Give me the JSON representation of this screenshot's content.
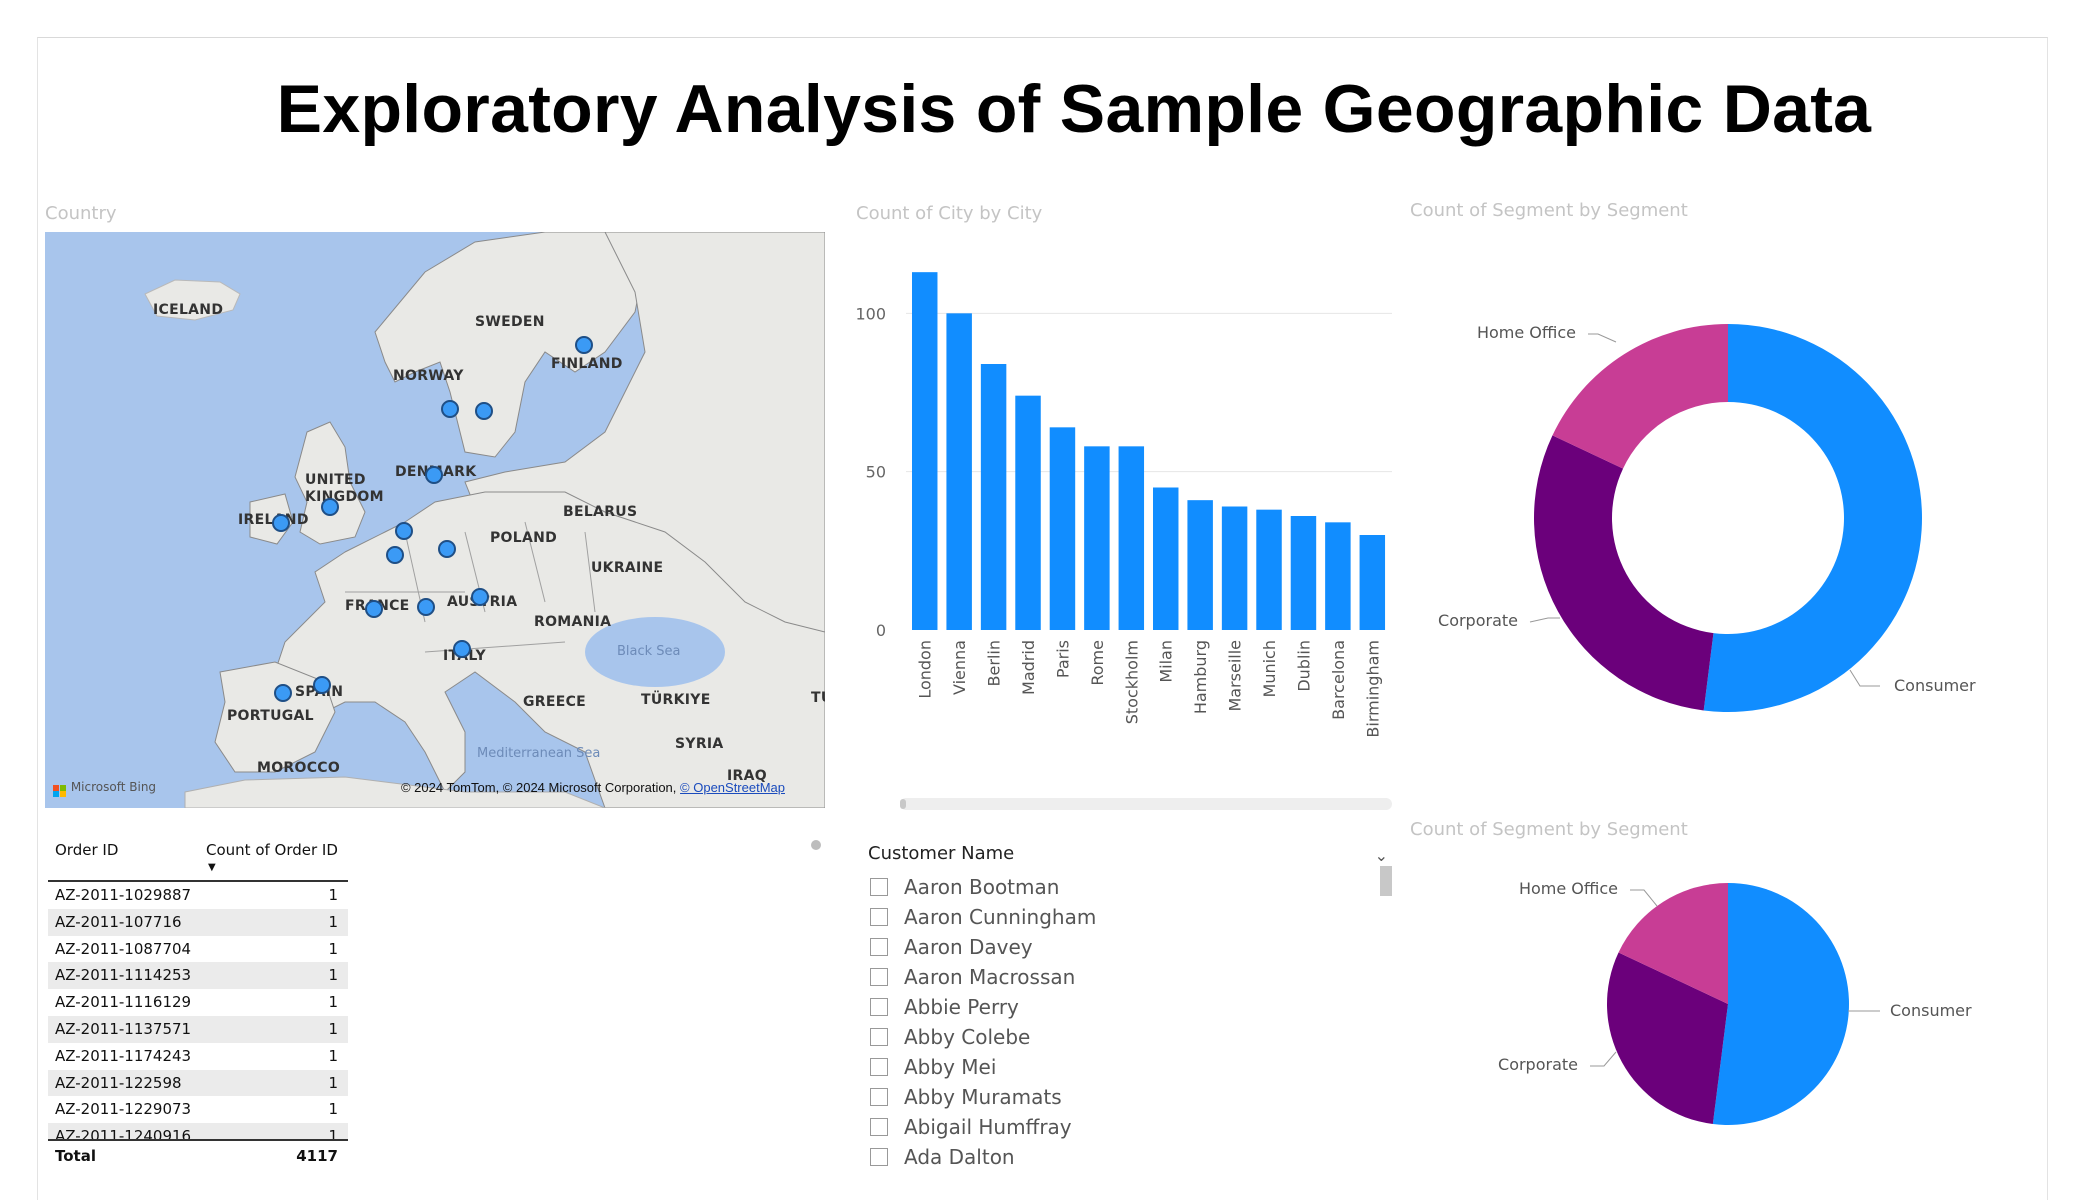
{
  "report": {
    "title": "Exploratory Analysis of Sample Geographic Data"
  },
  "map": {
    "title": "Country",
    "labels": {
      "iceland": "ICELAND",
      "sweden": "SWEDEN",
      "norway": "NORWAY",
      "finland": "FINLAND",
      "denmark": "DENMARK",
      "uk": "UNITED KINGDOM",
      "ireland": "IRELAND",
      "belarus": "BELARUS",
      "poland": "POLAND",
      "ukraine": "UKRAINE",
      "france": "FRANCE",
      "austria": "AUSTRIA",
      "romania": "ROMANIA",
      "italy": "ITALY",
      "spain": "SPAIN",
      "portugal": "PORTUGAL",
      "greece": "GREECE",
      "turkiye": "TÜRKIYE",
      "tu": "TU",
      "syria": "SYRIA",
      "morocco": "MOROCCO",
      "iraq": "IRAQ",
      "black_sea": "Black Sea",
      "med_sea": "Mediterranean Sea"
    },
    "attribution": "© 2024 TomTom, © 2024 Microsoft Corporation,",
    "attribution_link": "© OpenStreetMap",
    "bing": "Microsoft Bing",
    "bing_colors": [
      "#f25022",
      "#7fba00",
      "#00a4ef",
      "#ffb900"
    ],
    "marker_color": "#3b9af5"
  },
  "bar_chart": {
    "title": "Count of City by City",
    "color": "#118dff"
  },
  "donut_chart": {
    "title": "Count of Segment by Segment"
  },
  "pie_chart": {
    "title": "Count of Segment by Segment"
  },
  "table": {
    "col1": "Order ID",
    "col2": "Count of Order ID",
    "rows": [
      {
        "id": "AZ-2011-1029887",
        "count": "1"
      },
      {
        "id": "AZ-2011-107716",
        "count": "1"
      },
      {
        "id": "AZ-2011-1087704",
        "count": "1"
      },
      {
        "id": "AZ-2011-1114253",
        "count": "1"
      },
      {
        "id": "AZ-2011-1116129",
        "count": "1"
      },
      {
        "id": "AZ-2011-1137571",
        "count": "1"
      },
      {
        "id": "AZ-2011-1174243",
        "count": "1"
      },
      {
        "id": "AZ-2011-122598",
        "count": "1"
      },
      {
        "id": "AZ-2011-1229073",
        "count": "1"
      },
      {
        "id": "AZ-2011-1240916",
        "count": "1"
      }
    ],
    "total_label": "Total",
    "total_value": "4117"
  },
  "slicer": {
    "title": "Customer Name",
    "items": [
      "Aaron Bootman",
      "Aaron Cunningham",
      "Aaron Davey",
      "Aaron Macrossan",
      "Abbie Perry",
      "Abby Colebe",
      "Abby Mei",
      "Abby Muramats",
      "Abigail Humffray",
      "Ada Dalton"
    ]
  },
  "chart_data": [
    {
      "type": "bar",
      "title": "Count of City by City",
      "categories": [
        "London",
        "Vienna",
        "Berlin",
        "Madrid",
        "Paris",
        "Rome",
        "Stockholm",
        "Milan",
        "Hamburg",
        "Marseille",
        "Munich",
        "Dublin",
        "Barcelona",
        "Birmingham"
      ],
      "values": [
        113,
        100,
        84,
        74,
        64,
        58,
        58,
        45,
        41,
        39,
        38,
        36,
        34,
        30
      ],
      "yticks": [
        0,
        50,
        100
      ],
      "ylim": [
        0,
        120
      ],
      "grid": true,
      "color": "#118dff"
    },
    {
      "type": "pie",
      "variant": "donut",
      "title": "Count of Segment by Segment",
      "slices": [
        {
          "label": "Consumer",
          "value": 52,
          "color": "#118dff"
        },
        {
          "label": "Corporate",
          "value": 30,
          "color": "#6b007b"
        },
        {
          "label": "Home Office",
          "value": 18,
          "color": "#c83d95"
        }
      ]
    },
    {
      "type": "pie",
      "title": "Count of Segment by Segment",
      "slices": [
        {
          "label": "Consumer",
          "value": 52,
          "color": "#118dff"
        },
        {
          "label": "Corporate",
          "value": 30,
          "color": "#6b007b"
        },
        {
          "label": "Home Office",
          "value": 18,
          "color": "#c83d95"
        }
      ]
    }
  ]
}
